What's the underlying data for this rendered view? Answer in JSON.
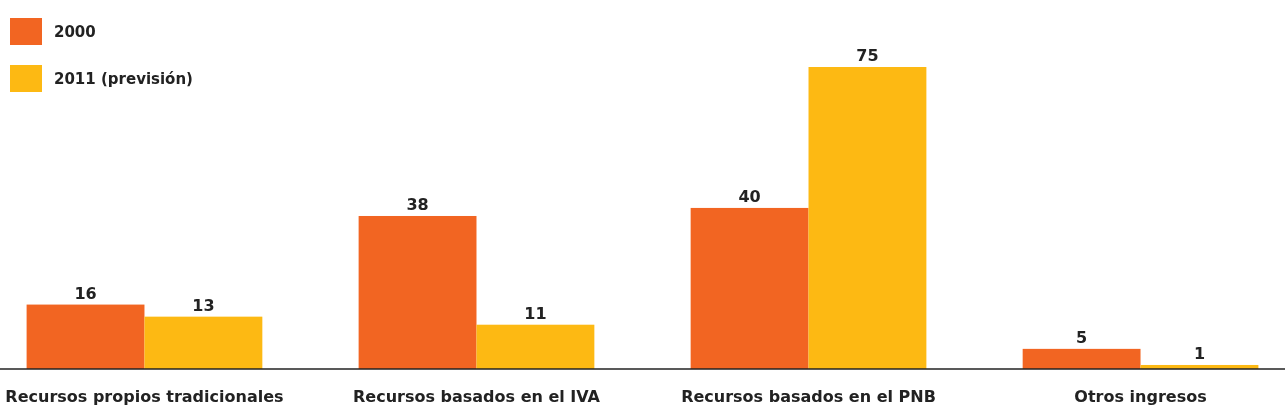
{
  "chart_data": {
    "type": "bar",
    "categories": [
      "Recursos propios tradicionales",
      "Recursos basados en el IVA",
      "Recursos basados en el PNB",
      "Otros ingresos"
    ],
    "series": [
      {
        "name": "2000",
        "color": "#f26522",
        "values": [
          16,
          38,
          40,
          5
        ]
      },
      {
        "name": "2011 (previsión)",
        "color": "#fdb913",
        "values": [
          13,
          11,
          75,
          1
        ]
      }
    ],
    "data_labels": true,
    "legend": "top left"
  }
}
